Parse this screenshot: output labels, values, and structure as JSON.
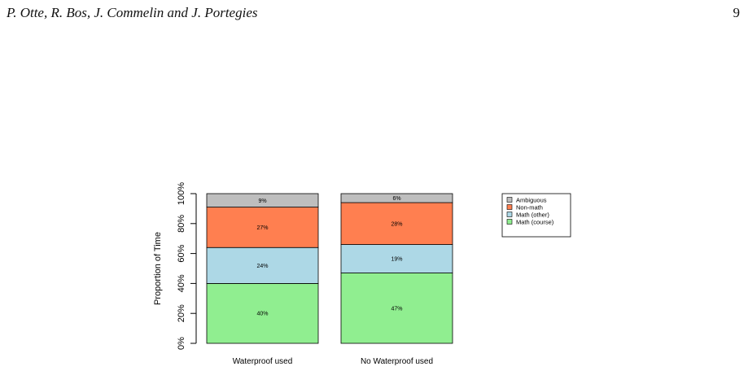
{
  "header": {
    "authors": "P. Otte, R. Bos, J. Commelin and J. Portegies",
    "page_number": "9"
  },
  "chart_data": {
    "type": "bar",
    "stacked": true,
    "title": "",
    "xlabel": "",
    "ylabel": "Proportion of Time",
    "ylim": [
      0,
      100
    ],
    "y_ticks": [
      0,
      20,
      40,
      60,
      80,
      100
    ],
    "y_tick_labels": [
      "0%",
      "20%",
      "40%",
      "60%",
      "80%",
      "100%"
    ],
    "categories": [
      "Waterproof used",
      "No Waterproof used"
    ],
    "series": [
      {
        "name": "Math (course)",
        "color": "#90ee90",
        "values": [
          40,
          47
        ],
        "labels": [
          "40%",
          "47%"
        ]
      },
      {
        "name": "Math (other)",
        "color": "#add8e6",
        "values": [
          24,
          19
        ],
        "labels": [
          "24%",
          "19%"
        ]
      },
      {
        "name": "Non-math",
        "color": "#ff7f50",
        "values": [
          27,
          28
        ],
        "labels": [
          "27%",
          "28%"
        ]
      },
      {
        "name": "Ambiguous",
        "color": "#bebebe",
        "values": [
          9,
          6
        ],
        "labels": [
          "9%",
          "6%"
        ]
      }
    ],
    "legend": {
      "placement": "right",
      "order": [
        "Ambiguous",
        "Non-math",
        "Math (other)",
        "Math (course)"
      ]
    },
    "grid": false
  }
}
